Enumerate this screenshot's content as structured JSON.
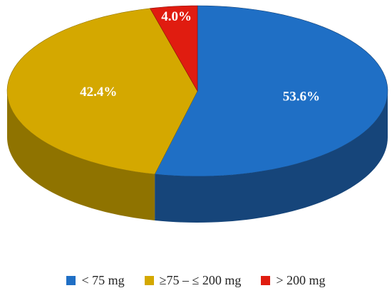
{
  "chart_data": {
    "type": "pie",
    "title": "",
    "categories": [
      "< 75 mg",
      "≥75  –  ≤ 200 mg",
      "> 200 mg"
    ],
    "values": [
      53.6,
      42.4,
      4.0
    ],
    "labels": [
      "53.6%",
      "42.4%",
      "4.0%"
    ],
    "colors": [
      "#1f6fc5",
      "#d4a800",
      "#e01c10"
    ],
    "side_colors": [
      "#16457a",
      "#8f7300",
      "#8a0f08"
    ],
    "legend_position": "bottom",
    "style": "3d"
  }
}
